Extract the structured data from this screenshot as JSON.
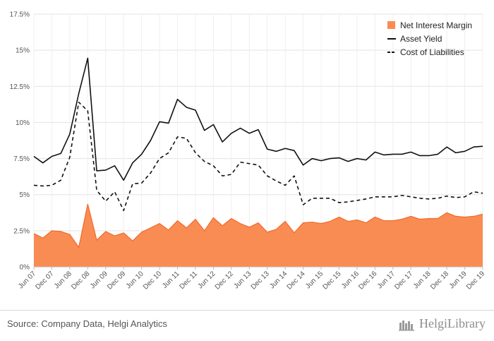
{
  "chart_data": {
    "type": "area+line",
    "x": [
      "Jun 07",
      "Sep 07",
      "Dec 07",
      "Mar 08",
      "Jun 08",
      "Sep 08",
      "Dec 08",
      "Mar 09",
      "Jun 09",
      "Sep 09",
      "Dec 09",
      "Mar 10",
      "Jun 10",
      "Sep 10",
      "Dec 10",
      "Mar 11",
      "Jun 11",
      "Sep 11",
      "Dec 11",
      "Mar 12",
      "Jun 12",
      "Sep 12",
      "Dec 12",
      "Mar 13",
      "Jun 13",
      "Sep 13",
      "Dec 13",
      "Mar 14",
      "Jun 14",
      "Sep 14",
      "Dec 14",
      "Mar 15",
      "Jun 15",
      "Sep 15",
      "Dec 15",
      "Mar 16",
      "Jun 16",
      "Sep 16",
      "Dec 16",
      "Mar 17",
      "Jun 17",
      "Sep 17",
      "Dec 17",
      "Mar 18",
      "Jun 18",
      "Sep 18",
      "Dec 18",
      "Mar 19",
      "Jun 19",
      "Sep 19",
      "Dec 19"
    ],
    "xtick_labels": [
      "Jun 07",
      "Dec 07",
      "Jun 08",
      "Dec 08",
      "Jun 09",
      "Dec 09",
      "Jun 10",
      "Dec 10",
      "Jun 11",
      "Dec 11",
      "Jun 12",
      "Dec 12",
      "Jun 13",
      "Dec 13",
      "Jun 14",
      "Dec 14",
      "Jun 15",
      "Dec 15",
      "Jun 16",
      "Dec 16",
      "Jun 17",
      "Dec 17",
      "Jun 18",
      "Dec 18",
      "Jun 19",
      "Dec 19"
    ],
    "yticks": [
      0,
      2.5,
      5,
      7.5,
      10,
      12.5,
      15,
      17.5
    ],
    "ytick_labels": [
      "0%",
      "2.5%",
      "5%",
      "7.5%",
      "10%",
      "12.5%",
      "15%",
      "17.5%"
    ],
    "ylim": [
      0,
      17.5
    ],
    "grid": true,
    "legend_position": "top-right",
    "series": [
      {
        "name": "Net Interest Margin",
        "kind": "area",
        "color": "#f98c52",
        "edge_color": "#f26a2c",
        "values": [
          2.3,
          2.0,
          2.5,
          2.45,
          2.25,
          1.35,
          4.35,
          1.85,
          2.45,
          2.15,
          2.35,
          1.8,
          2.4,
          2.7,
          3.0,
          2.55,
          3.2,
          2.7,
          3.3,
          2.5,
          3.4,
          2.85,
          3.35,
          3.0,
          2.75,
          3.05,
          2.4,
          2.6,
          3.15,
          2.35,
          3.05,
          3.1,
          3.0,
          3.15,
          3.45,
          3.15,
          3.25,
          3.05,
          3.45,
          3.2,
          3.2,
          3.3,
          3.5,
          3.3,
          3.35,
          3.35,
          3.75,
          3.5,
          3.45,
          3.5,
          3.65
        ]
      },
      {
        "name": "Asset Yield",
        "kind": "line",
        "color": "#111111",
        "dash": "solid",
        "values": [
          7.65,
          7.2,
          7.65,
          7.85,
          9.2,
          12.0,
          14.45,
          6.65,
          6.7,
          7.0,
          6.0,
          7.2,
          7.8,
          8.75,
          10.05,
          9.95,
          11.6,
          11.05,
          10.85,
          9.45,
          9.85,
          8.65,
          9.25,
          9.6,
          9.25,
          9.5,
          8.15,
          8.0,
          8.2,
          8.05,
          7.05,
          7.5,
          7.35,
          7.5,
          7.55,
          7.3,
          7.5,
          7.4,
          7.95,
          7.75,
          7.8,
          7.8,
          7.95,
          7.7,
          7.7,
          7.8,
          8.3,
          7.9,
          8.0,
          8.3,
          8.35
        ]
      },
      {
        "name": "Cost of Liabilities",
        "kind": "line",
        "color": "#111111",
        "dash": "dashed",
        "values": [
          5.65,
          5.6,
          5.65,
          6.0,
          7.6,
          11.4,
          10.8,
          5.3,
          4.55,
          5.2,
          3.9,
          5.75,
          5.8,
          6.5,
          7.5,
          7.9,
          9.0,
          8.9,
          7.9,
          7.3,
          7.0,
          6.3,
          6.4,
          7.25,
          7.15,
          7.05,
          6.3,
          5.95,
          5.65,
          6.3,
          4.3,
          4.75,
          4.75,
          4.75,
          4.45,
          4.5,
          4.6,
          4.7,
          4.85,
          4.85,
          4.85,
          4.95,
          4.85,
          4.75,
          4.7,
          4.75,
          4.9,
          4.8,
          4.85,
          5.2,
          5.1
        ]
      }
    ]
  },
  "footer": {
    "source": "Source: Company Data, Helgi Analytics",
    "logo_text": "HelgiLibrary"
  }
}
